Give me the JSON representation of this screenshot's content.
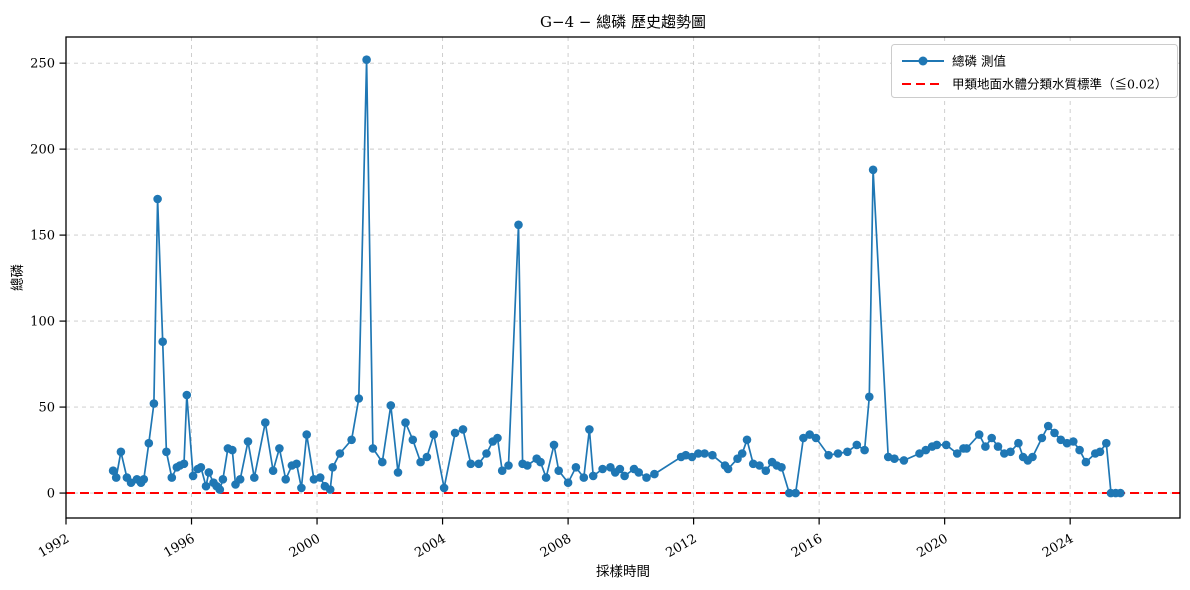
{
  "title": "G−4 − 總磷 歷史趨勢圖",
  "colors": {
    "series": "#1f77b4",
    "threshold": "#ff0000",
    "grid": "#c9c9c9",
    "spine": "#000000",
    "legend_border": "#cccccc"
  },
  "legend": {
    "series_label": "總磷 測值",
    "threshold_label": "甲類地面水體分類水質標準（≦0.02）"
  },
  "chart_data": {
    "type": "line",
    "title": "G−4 − 總磷 歷史趨勢圖",
    "xlabel": "採樣時間",
    "ylabel": "總磷",
    "xlim": [
      1992,
      2027.5
    ],
    "ylim": [
      -14.5,
      265.2
    ],
    "xticks": [
      1992,
      1996,
      2000,
      2004,
      2008,
      2012,
      2016,
      2020,
      2024
    ],
    "yticks": [
      0,
      50,
      100,
      150,
      200,
      250
    ],
    "grid": true,
    "grid_style": "dashed",
    "legend_position": "upper right",
    "x_tick_rotation": 30,
    "threshold": {
      "value": 0.02,
      "label": "甲類地面水體分類水質標準（≦0.02）",
      "style": "dashed",
      "color": "#ff0000"
    },
    "series": [
      {
        "name": "總磷 測值",
        "color": "#1f77b4",
        "marker": "circle",
        "points": [
          [
            1993.5,
            13
          ],
          [
            1993.6,
            9
          ],
          [
            1993.75,
            24
          ],
          [
            1993.94,
            9
          ],
          [
            1994.07,
            6
          ],
          [
            1994.26,
            8
          ],
          [
            1994.39,
            6
          ],
          [
            1994.48,
            8
          ],
          [
            1994.64,
            29
          ],
          [
            1994.8,
            52
          ],
          [
            1994.92,
            171
          ],
          [
            1995.08,
            88
          ],
          [
            1995.2,
            24
          ],
          [
            1995.37,
            9
          ],
          [
            1995.53,
            15
          ],
          [
            1995.63,
            16
          ],
          [
            1995.76,
            17
          ],
          [
            1995.85,
            57
          ],
          [
            1996.05,
            10
          ],
          [
            1996.2,
            14
          ],
          [
            1996.3,
            15
          ],
          [
            1996.46,
            4
          ],
          [
            1996.55,
            12
          ],
          [
            1996.7,
            6
          ],
          [
            1996.8,
            4
          ],
          [
            1996.9,
            2
          ],
          [
            1997.0,
            8
          ],
          [
            1997.16,
            26
          ],
          [
            1997.3,
            25
          ],
          [
            1997.4,
            5
          ],
          [
            1997.55,
            8
          ],
          [
            1997.8,
            30
          ],
          [
            1998.0,
            9
          ],
          [
            1998.35,
            41
          ],
          [
            1998.6,
            13
          ],
          [
            1998.8,
            26
          ],
          [
            1999.0,
            8
          ],
          [
            1999.2,
            16
          ],
          [
            1999.35,
            17
          ],
          [
            1999.5,
            3
          ],
          [
            1999.67,
            34
          ],
          [
            1999.9,
            8
          ],
          [
            2000.1,
            9
          ],
          [
            2000.25,
            4
          ],
          [
            2000.42,
            2
          ],
          [
            2000.5,
            15
          ],
          [
            2000.73,
            23
          ],
          [
            2001.1,
            31
          ],
          [
            2001.33,
            55
          ],
          [
            2001.58,
            252
          ],
          [
            2001.78,
            26
          ],
          [
            2002.08,
            18
          ],
          [
            2002.35,
            51
          ],
          [
            2002.58,
            12
          ],
          [
            2002.82,
            41
          ],
          [
            2003.05,
            31
          ],
          [
            2003.3,
            18
          ],
          [
            2003.5,
            21
          ],
          [
            2003.72,
            34
          ],
          [
            2004.05,
            3
          ],
          [
            2004.4,
            35
          ],
          [
            2004.65,
            37
          ],
          [
            2004.9,
            17
          ],
          [
            2005.15,
            17
          ],
          [
            2005.4,
            23
          ],
          [
            2005.6,
            30
          ],
          [
            2005.75,
            32
          ],
          [
            2005.9,
            13
          ],
          [
            2006.1,
            16
          ],
          [
            2006.42,
            156
          ],
          [
            2006.55,
            17
          ],
          [
            2006.7,
            16
          ],
          [
            2007.0,
            20
          ],
          [
            2007.12,
            18
          ],
          [
            2007.3,
            9
          ],
          [
            2007.55,
            28
          ],
          [
            2007.7,
            13
          ],
          [
            2008.0,
            6
          ],
          [
            2008.25,
            15
          ],
          [
            2008.5,
            9
          ],
          [
            2008.68,
            37
          ],
          [
            2008.8,
            10
          ],
          [
            2009.1,
            14
          ],
          [
            2009.35,
            15
          ],
          [
            2009.5,
            12
          ],
          [
            2009.65,
            14
          ],
          [
            2009.8,
            10
          ],
          [
            2010.1,
            14
          ],
          [
            2010.25,
            12
          ],
          [
            2010.5,
            9
          ],
          [
            2010.75,
            11
          ],
          [
            2011.6,
            21
          ],
          [
            2011.75,
            22
          ],
          [
            2011.95,
            21
          ],
          [
            2012.15,
            23
          ],
          [
            2012.35,
            23
          ],
          [
            2012.6,
            22
          ],
          [
            2013.0,
            16
          ],
          [
            2013.1,
            14
          ],
          [
            2013.4,
            20
          ],
          [
            2013.55,
            23
          ],
          [
            2013.7,
            31
          ],
          [
            2013.9,
            17
          ],
          [
            2014.1,
            16
          ],
          [
            2014.3,
            13
          ],
          [
            2014.5,
            18
          ],
          [
            2014.65,
            16
          ],
          [
            2014.8,
            15
          ],
          [
            2015.05,
            0
          ],
          [
            2015.25,
            0
          ],
          [
            2015.5,
            32
          ],
          [
            2015.7,
            34
          ],
          [
            2015.9,
            32
          ],
          [
            2016.3,
            22
          ],
          [
            2016.6,
            23
          ],
          [
            2016.9,
            24
          ],
          [
            2017.2,
            28
          ],
          [
            2017.45,
            25
          ],
          [
            2017.6,
            56
          ],
          [
            2017.72,
            188
          ],
          [
            2018.2,
            21
          ],
          [
            2018.4,
            20
          ],
          [
            2018.7,
            19
          ],
          [
            2019.2,
            23
          ],
          [
            2019.4,
            25
          ],
          [
            2019.6,
            27
          ],
          [
            2019.75,
            28
          ],
          [
            2020.05,
            28
          ],
          [
            2020.4,
            23
          ],
          [
            2020.6,
            26
          ],
          [
            2020.7,
            26
          ],
          [
            2021.1,
            34
          ],
          [
            2021.3,
            27
          ],
          [
            2021.5,
            32
          ],
          [
            2021.7,
            27
          ],
          [
            2021.9,
            23
          ],
          [
            2022.1,
            24
          ],
          [
            2022.35,
            29
          ],
          [
            2022.5,
            21
          ],
          [
            2022.65,
            19
          ],
          [
            2022.8,
            21
          ],
          [
            2023.1,
            32
          ],
          [
            2023.3,
            39
          ],
          [
            2023.5,
            35
          ],
          [
            2023.7,
            31
          ],
          [
            2023.9,
            29
          ],
          [
            2024.1,
            30
          ],
          [
            2024.3,
            25
          ],
          [
            2024.5,
            18
          ],
          [
            2024.8,
            23
          ],
          [
            2024.95,
            24
          ],
          [
            2025.15,
            29
          ],
          [
            2025.3,
            0
          ],
          [
            2025.45,
            0
          ],
          [
            2025.6,
            0
          ]
        ]
      }
    ]
  }
}
